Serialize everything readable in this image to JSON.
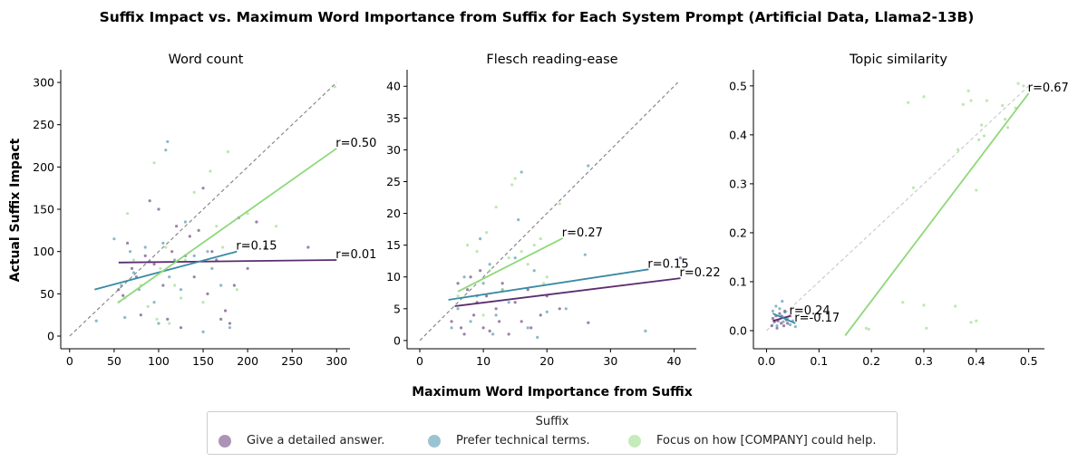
{
  "figure": {
    "title": "Suffix Impact vs. Maximum Word Importance from Suffix for Each System Prompt (Artificial Data, Llama2-13B)",
    "xlabel": "Maximum Word Importance from Suffix",
    "ylabel": "Actual Suffix Impact"
  },
  "legend": {
    "title": "Suffix",
    "items": [
      {
        "label": "Give a detailed answer.",
        "color": "#5b2c6f"
      },
      {
        "label": "Prefer technical terms.",
        "color": "#3a8aa4"
      },
      {
        "label": "Focus on how [COMPANY] could help.",
        "color": "#8fd87a"
      }
    ]
  },
  "colors": {
    "series": [
      "#5b2c6f",
      "#3a8aa4",
      "#8fd87a"
    ],
    "diagonal": "#808080",
    "diagonal_light": "#c8c8c8"
  },
  "chart_data": [
    {
      "type": "scatter",
      "title": "Word count",
      "xlim": [
        -10,
        315
      ],
      "ylim": [
        -15,
        315
      ],
      "xticks": [
        0,
        50,
        100,
        150,
        200,
        250,
        300
      ],
      "yticks": [
        0,
        50,
        100,
        150,
        200,
        250,
        300
      ],
      "tick_labels_x": [
        "0",
        "50",
        "100",
        "150",
        "200",
        "250",
        "300"
      ],
      "tick_labels_y": [
        "0",
        "50",
        "100",
        "150",
        "200",
        "250",
        "300"
      ],
      "diagonal": {
        "from": [
          0,
          0
        ],
        "to": [
          300,
          300
        ],
        "style": "dark"
      },
      "series": [
        {
          "name": "Give a detailed answer.",
          "points": [
            [
              55,
              55
            ],
            [
              60,
              48
            ],
            [
              65,
              110
            ],
            [
              70,
              80
            ],
            [
              75,
              70
            ],
            [
              80,
              25
            ],
            [
              85,
              95
            ],
            [
              90,
              160
            ],
            [
              95,
              85
            ],
            [
              100,
              150
            ],
            [
              105,
              60
            ],
            [
              110,
              20
            ],
            [
              115,
              100
            ],
            [
              120,
              130
            ],
            [
              125,
              10
            ],
            [
              130,
              95
            ],
            [
              135,
              118
            ],
            [
              140,
              70
            ],
            [
              145,
              125
            ],
            [
              150,
              175
            ],
            [
              155,
              50
            ],
            [
              160,
              100
            ],
            [
              165,
              90
            ],
            [
              170,
              20
            ],
            [
              175,
              30
            ],
            [
              180,
              15
            ],
            [
              185,
              60
            ],
            [
              190,
              140
            ],
            [
              200,
              80
            ],
            [
              210,
              135
            ],
            [
              220,
              105
            ],
            [
              268,
              105
            ]
          ],
          "fit": {
            "from": [
              55,
              87
            ],
            "to": [
              300,
              90
            ]
          },
          "r_label": "r=0.01"
        },
        {
          "name": "Prefer technical terms.",
          "points": [
            [
              30,
              18
            ],
            [
              50,
              115
            ],
            [
              58,
              60
            ],
            [
              62,
              22
            ],
            [
              68,
              100
            ],
            [
              72,
              75
            ],
            [
              78,
              55
            ],
            [
              85,
              105
            ],
            [
              90,
              88
            ],
            [
              95,
              40
            ],
            [
              100,
              15
            ],
            [
              105,
              110
            ],
            [
              108,
              220
            ],
            [
              110,
              230
            ],
            [
              112,
              70
            ],
            [
              118,
              90
            ],
            [
              125,
              55
            ],
            [
              130,
              135
            ],
            [
              140,
              95
            ],
            [
              150,
              5
            ],
            [
              155,
              100
            ],
            [
              160,
              80
            ],
            [
              170,
              60
            ],
            [
              180,
              10
            ]
          ],
          "fit": {
            "from": [
              28,
              55
            ],
            "to": [
              188,
              100
            ]
          },
          "r_label": "r=0.15"
        },
        {
          "name": "Focus on how [COMPANY] could help.",
          "points": [
            [
              55,
              40
            ],
            [
              62,
              45
            ],
            [
              65,
              145
            ],
            [
              72,
              90
            ],
            [
              80,
              60
            ],
            [
              88,
              35
            ],
            [
              95,
              205
            ],
            [
              98,
              20
            ],
            [
              102,
              80
            ],
            [
              108,
              105
            ],
            [
              112,
              15
            ],
            [
              118,
              60
            ],
            [
              125,
              45
            ],
            [
              130,
              90
            ],
            [
              140,
              170
            ],
            [
              150,
              40
            ],
            [
              158,
              195
            ],
            [
              165,
              130
            ],
            [
              172,
              105
            ],
            [
              178,
              218
            ],
            [
              188,
              55
            ],
            [
              200,
              145
            ],
            [
              232,
              130
            ],
            [
              298,
              295
            ]
          ],
          "fit": {
            "from": [
              55,
              40
            ],
            "to": [
              300,
              222
            ]
          },
          "r_label": "r=0.50"
        }
      ]
    },
    {
      "type": "scatter",
      "title": "Flesch reading-ease",
      "xlim": [
        -2,
        43.5
      ],
      "ylim": [
        -1.3,
        42.6
      ],
      "xticks": [
        0,
        10,
        20,
        30,
        40
      ],
      "yticks": [
        0,
        5,
        10,
        15,
        20,
        25,
        30,
        35,
        40
      ],
      "tick_labels_x": [
        "0",
        "10",
        "20",
        "30",
        "40"
      ],
      "tick_labels_y": [
        "0",
        "5",
        "10",
        "15",
        "20",
        "25",
        "30",
        "35",
        "40"
      ],
      "diagonal": {
        "from": [
          0,
          0
        ],
        "to": [
          40.6,
          40.6
        ],
        "style": "dark"
      },
      "series": [
        {
          "name": "Give a detailed answer.",
          "points": [
            [
              5,
              3
            ],
            [
              6,
              9
            ],
            [
              6.5,
              2
            ],
            [
              7,
              1
            ],
            [
              7.5,
              8
            ],
            [
              8,
              10
            ],
            [
              8.5,
              4
            ],
            [
              9,
              6
            ],
            [
              9.5,
              11
            ],
            [
              10,
              2
            ],
            [
              10.5,
              7
            ],
            [
              11,
              1.5
            ],
            [
              12,
              5
            ],
            [
              12.5,
              3
            ],
            [
              13,
              9
            ],
            [
              14,
              1
            ],
            [
              15,
              6
            ],
            [
              16,
              3
            ],
            [
              17,
              8
            ],
            [
              17.5,
              2
            ],
            [
              19,
              4
            ],
            [
              20,
              7
            ],
            [
              22,
              5
            ],
            [
              26.5,
              2.8
            ],
            [
              41,
              13
            ]
          ],
          "fit": {
            "from": [
              5.5,
              5.4
            ],
            "to": [
              41,
              9.8
            ]
          },
          "r_label": "r=0.22"
        },
        {
          "name": "Prefer technical terms.",
          "points": [
            [
              5,
              2
            ],
            [
              6,
              5
            ],
            [
              7,
              10
            ],
            [
              8,
              3
            ],
            [
              9,
              7
            ],
            [
              9.5,
              16
            ],
            [
              10,
              9
            ],
            [
              11,
              12
            ],
            [
              11.5,
              1
            ],
            [
              12,
              4
            ],
            [
              13,
              8
            ],
            [
              14,
              6
            ],
            [
              15,
              13
            ],
            [
              15.5,
              19
            ],
            [
              16,
              26.5
            ],
            [
              17,
              2
            ],
            [
              18,
              11
            ],
            [
              18.5,
              0.5
            ],
            [
              20,
              4.5
            ],
            [
              23,
              5
            ],
            [
              26,
              13.5
            ],
            [
              26.5,
              27.5
            ],
            [
              35.5,
              1.5
            ]
          ],
          "fit": {
            "from": [
              4.5,
              6.4
            ],
            "to": [
              36,
              11.2
            ]
          },
          "r_label": "r=0.15"
        },
        {
          "name": "Focus on how [COMPANY] could help.",
          "points": [
            [
              6,
              7
            ],
            [
              7.5,
              15
            ],
            [
              9,
              14
            ],
            [
              10,
              4
            ],
            [
              10.5,
              17
            ],
            [
              11,
              11
            ],
            [
              12,
              21
            ],
            [
              13,
              8
            ],
            [
              14,
              13
            ],
            [
              14.5,
              24.5
            ],
            [
              15,
              25.5
            ],
            [
              16,
              14
            ],
            [
              17,
              12
            ],
            [
              18,
              15
            ],
            [
              19,
              16
            ],
            [
              19.5,
              9
            ],
            [
              20,
              10
            ],
            [
              22,
              21.5
            ]
          ],
          "fit": {
            "from": [
              6,
              7.7
            ],
            "to": [
              22.5,
              16.1
            ]
          },
          "r_label": "r=0.27"
        }
      ]
    },
    {
      "type": "scatter",
      "title": "Topic similarity",
      "xlim": [
        -0.025,
        0.53
      ],
      "ylim": [
        -0.037,
        0.533
      ],
      "xticks": [
        0.0,
        0.1,
        0.2,
        0.3,
        0.4,
        0.5
      ],
      "yticks": [
        0.0,
        0.1,
        0.2,
        0.3,
        0.4,
        0.5
      ],
      "tick_labels_x": [
        "0.0",
        "0.1",
        "0.2",
        "0.3",
        "0.4",
        "0.5"
      ],
      "tick_labels_y": [
        "0.0",
        "0.1",
        "0.2",
        "0.3",
        "0.4",
        "0.5"
      ],
      "diagonal": {
        "from": [
          0,
          0
        ],
        "to": [
          0.5,
          0.5
        ],
        "style": "light"
      },
      "series": [
        {
          "name": "Give a detailed answer.",
          "points": [
            [
              0.01,
              0.01
            ],
            [
              0.012,
              0.025
            ],
            [
              0.015,
              0.018
            ],
            [
              0.018,
              0.03
            ],
            [
              0.02,
              0.005
            ],
            [
              0.022,
              0.02
            ],
            [
              0.025,
              0.035
            ],
            [
              0.028,
              0.015
            ],
            [
              0.03,
              0.028
            ],
            [
              0.033,
              0.01
            ],
            [
              0.035,
              0.04
            ],
            [
              0.038,
              0.022
            ],
            [
              0.04,
              0.015
            ],
            [
              0.045,
              0.03
            ]
          ],
          "fit": {
            "from": [
              0.012,
              0.02
            ],
            "to": [
              0.045,
              0.03
            ]
          },
          "r_label": "r=0.24"
        },
        {
          "name": "Prefer technical terms.",
          "points": [
            [
              0.012,
              0.04
            ],
            [
              0.015,
              0.02
            ],
            [
              0.018,
              0.05
            ],
            [
              0.02,
              0.01
            ],
            [
              0.025,
              0.045
            ],
            [
              0.028,
              0.03
            ],
            [
              0.03,
              0.06
            ],
            [
              0.032,
              0.018
            ],
            [
              0.035,
              0.038
            ],
            [
              0.04,
              0.025
            ],
            [
              0.045,
              0.012
            ],
            [
              0.05,
              0.02
            ],
            [
              0.055,
              0.008
            ]
          ],
          "fit": {
            "from": [
              0.012,
              0.035
            ],
            "to": [
              0.055,
              0.015
            ]
          },
          "r_label": "r=-0.17"
        },
        {
          "name": "Focus on how [COMPANY] could help.",
          "points": [
            [
              0.19,
              0.005
            ],
            [
              0.195,
              0.003
            ],
            [
              0.26,
              0.058
            ],
            [
              0.27,
              0.466
            ],
            [
              0.28,
              0.292
            ],
            [
              0.3,
              0.052
            ],
            [
              0.3,
              0.478
            ],
            [
              0.305,
              0.005
            ],
            [
              0.36,
              0.05
            ],
            [
              0.365,
              0.37
            ],
            [
              0.375,
              0.462
            ],
            [
              0.385,
              0.49
            ],
            [
              0.39,
              0.017
            ],
            [
              0.39,
              0.47
            ],
            [
              0.4,
              0.287
            ],
            [
              0.4,
              0.02
            ],
            [
              0.405,
              0.39
            ],
            [
              0.41,
              0.42
            ],
            [
              0.415,
              0.398
            ],
            [
              0.42,
              0.47
            ],
            [
              0.45,
              0.46
            ],
            [
              0.455,
              0.432
            ],
            [
              0.46,
              0.415
            ],
            [
              0.475,
              0.455
            ],
            [
              0.48,
              0.505
            ],
            [
              0.49,
              0.5
            ]
          ],
          "fit": {
            "from": [
              0.15,
              -0.01
            ],
            "to": [
              0.5,
              0.485
            ]
          },
          "r_label": "r=0.67"
        }
      ]
    }
  ]
}
